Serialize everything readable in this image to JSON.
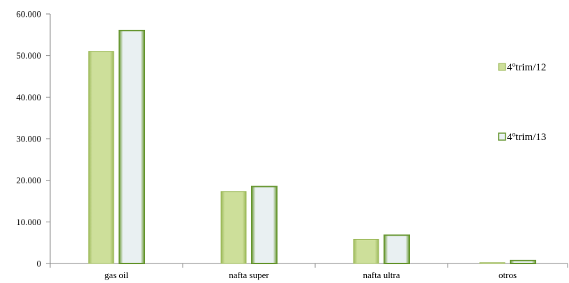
{
  "chart_data": {
    "type": "bar",
    "categories": [
      "gas oil",
      "nafta super",
      "nafta ultra",
      "otros"
    ],
    "series": [
      {
        "name": "4ºtrim/12",
        "values": [
          51000,
          17300,
          5800,
          200
        ]
      },
      {
        "name": "4ºtrim/13",
        "values": [
          56000,
          18500,
          6800,
          700
        ]
      }
    ],
    "ylim": [
      0,
      60000
    ],
    "yticks": [
      0,
      10000,
      20000,
      30000,
      40000,
      50000,
      60000
    ],
    "ytick_labels": [
      "0",
      "10.000",
      "20.000",
      "30.000",
      "40.000",
      "50.000",
      "60.000"
    ],
    "grid": false,
    "legend_position": "right",
    "title": "",
    "xlabel": "",
    "ylabel": ""
  },
  "colors": {
    "series1_fill": "#cddf9a",
    "series1_edge": "#9cb95a",
    "series2_fill": "#e9f0f2",
    "series2_edge": "#6c9a38",
    "axis": "#888888"
  }
}
